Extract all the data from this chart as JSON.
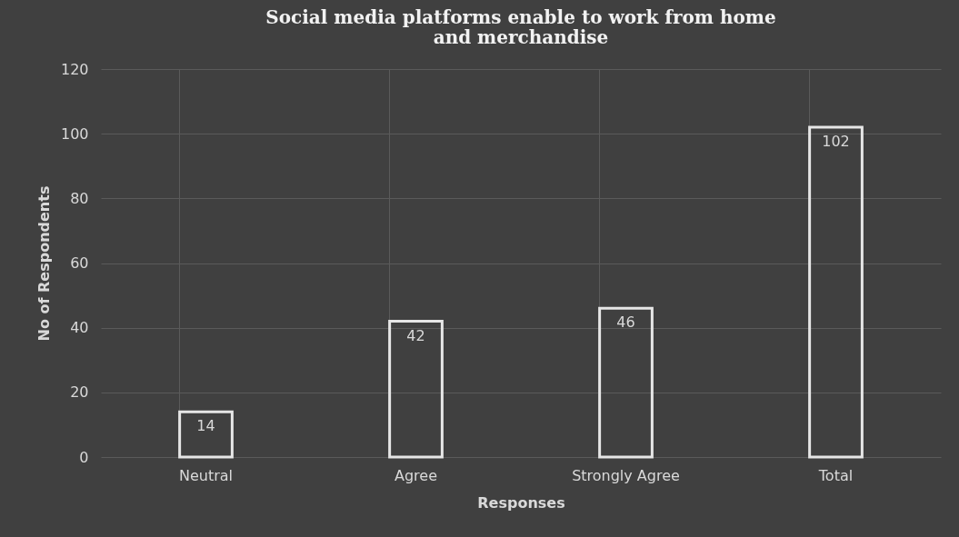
{
  "chart_data": {
    "type": "bar",
    "title": "Social media platforms enable to work from home and merchandise",
    "xlabel": "Responses",
    "ylabel": "No of Respondents",
    "categories": [
      "Neutral",
      "Agree",
      "Strongly Agree",
      "Total"
    ],
    "values": [
      14,
      42,
      46,
      102
    ],
    "color": "#e6e6e6",
    "ylim": [
      0,
      120
    ],
    "yticks": [
      0,
      20,
      40,
      60,
      80,
      100,
      120
    ],
    "grid": true,
    "data_labels": true
  }
}
